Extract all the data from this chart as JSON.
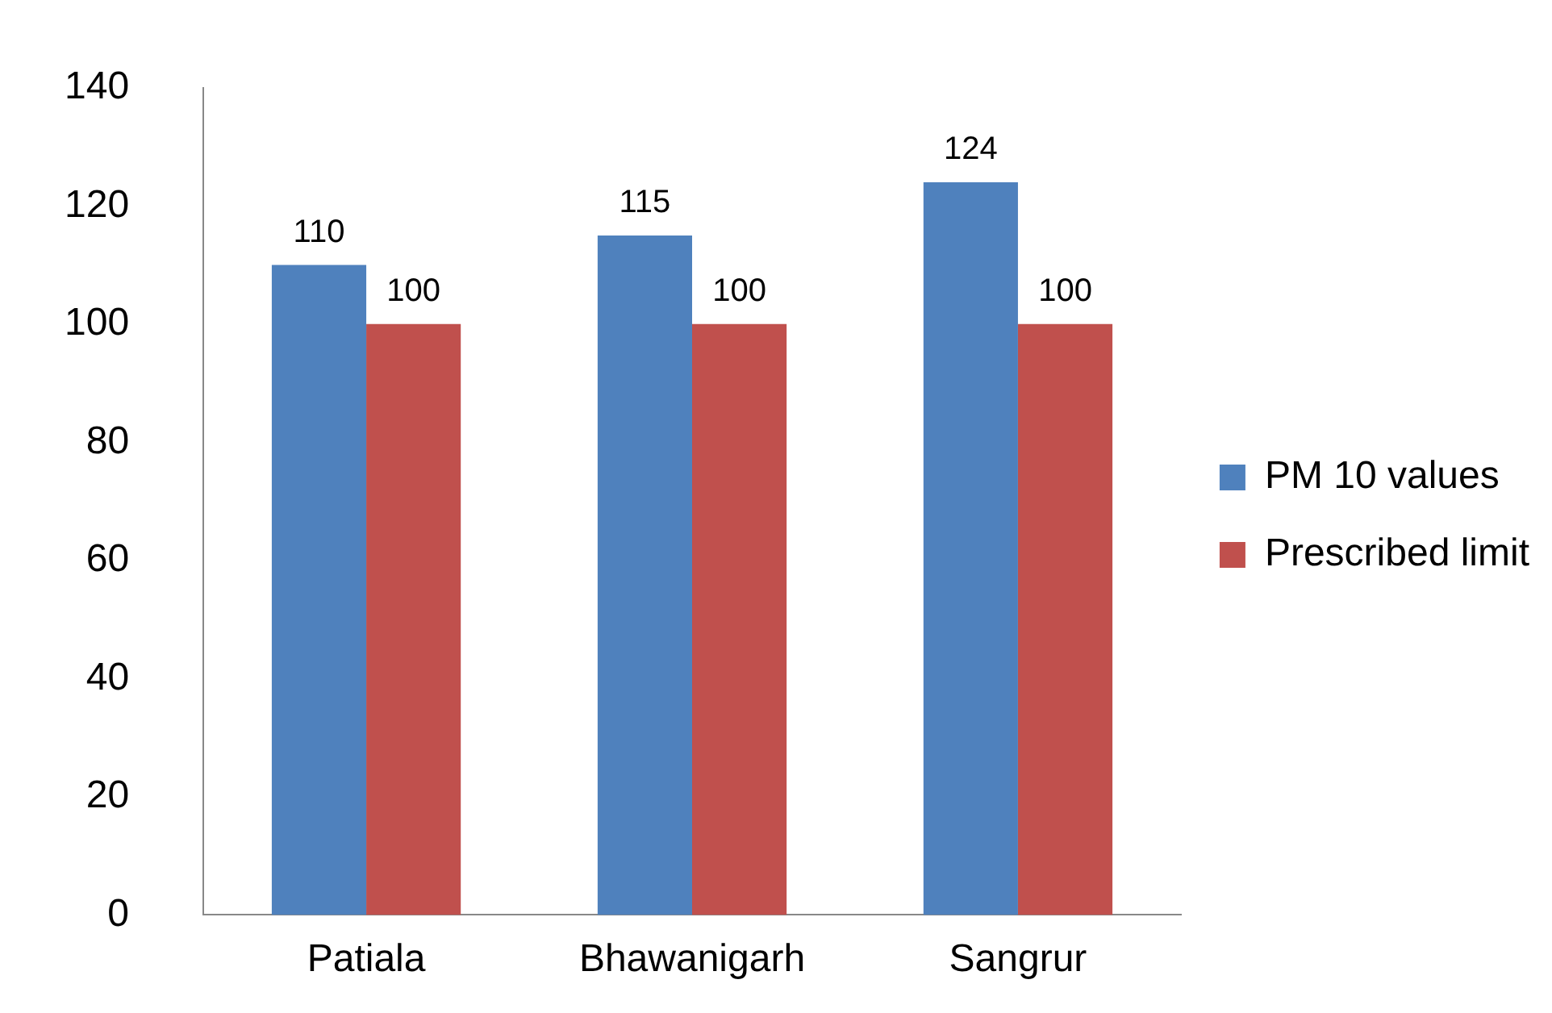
{
  "chart_data": {
    "type": "bar",
    "categories": [
      "Patiala",
      "Bhawanigarh",
      "Sangrur"
    ],
    "series": [
      {
        "name": "PM 10 values",
        "color": "#4f81bd",
        "values": [
          110,
          115,
          124
        ]
      },
      {
        "name": "Prescribed limit",
        "color": "#c0504d",
        "values": [
          100,
          100,
          100
        ]
      }
    ],
    "ylim": [
      0,
      140
    ],
    "yticks": [
      0,
      20,
      40,
      60,
      80,
      100,
      120,
      140
    ],
    "grid": false,
    "legend": "right",
    "data_labels": true
  }
}
